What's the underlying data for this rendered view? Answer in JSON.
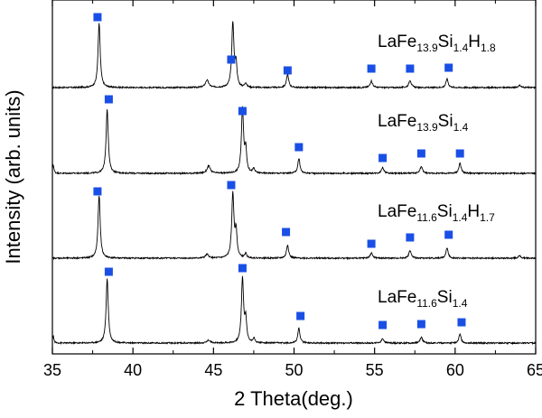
{
  "chart_data": {
    "type": "line",
    "xlabel": "2 Theta(deg.)",
    "ylabel": "Intensity (arb. units)",
    "xlim": [
      35,
      65
    ],
    "x_ticks": [
      35,
      40,
      45,
      50,
      55,
      60,
      65
    ],
    "grid": false,
    "marker_color": "#1a4fe6",
    "line_color": "#000000",
    "series": [
      {
        "name": "LaFe13.9Si1.4H1.8",
        "label_parts": [
          {
            "t": "LaFe",
            "sub": false
          },
          {
            "t": "13.9",
            "sub": true
          },
          {
            "t": "Si",
            "sub": false
          },
          {
            "t": "1.4",
            "sub": true
          },
          {
            "t": "H",
            "sub": false
          },
          {
            "t": "1.8",
            "sub": true
          }
        ],
        "peaks": [
          {
            "x": 37.9,
            "y": 0.87,
            "w": 0.08
          },
          {
            "x": 44.6,
            "y": 0.1,
            "w": 0.12
          },
          {
            "x": 46.2,
            "y": 0.87,
            "w": 0.08
          },
          {
            "x": 46.4,
            "y": 0.3,
            "w": 0.07
          },
          {
            "x": 47.0,
            "y": 0.06,
            "w": 0.07
          },
          {
            "x": 49.6,
            "y": 0.18,
            "w": 0.08
          },
          {
            "x": 54.8,
            "y": 0.09,
            "w": 0.09
          },
          {
            "x": 57.2,
            "y": 0.1,
            "w": 0.09
          },
          {
            "x": 59.5,
            "y": 0.12,
            "w": 0.08
          },
          {
            "x": 64.0,
            "y": 0.03,
            "w": 0.1
          }
        ],
        "markers_x": [
          37.8,
          46.1,
          49.6,
          54.8,
          57.2,
          59.6
        ]
      },
      {
        "name": "LaFe13.9Si1.4",
        "label_parts": [
          {
            "t": "LaFe",
            "sub": false
          },
          {
            "t": "13.9",
            "sub": true
          },
          {
            "t": "Si",
            "sub": false
          },
          {
            "t": "1.4",
            "sub": true
          }
        ],
        "peaks": [
          {
            "x": 35.05,
            "y": 0.12,
            "w": 0.05
          },
          {
            "x": 38.4,
            "y": 0.87,
            "w": 0.08
          },
          {
            "x": 44.7,
            "y": 0.1,
            "w": 0.12
          },
          {
            "x": 46.8,
            "y": 0.87,
            "w": 0.08
          },
          {
            "x": 47.0,
            "y": 0.3,
            "w": 0.07
          },
          {
            "x": 47.5,
            "y": 0.06,
            "w": 0.07
          },
          {
            "x": 50.3,
            "y": 0.2,
            "w": 0.08
          },
          {
            "x": 55.5,
            "y": 0.08,
            "w": 0.09
          },
          {
            "x": 57.9,
            "y": 0.09,
            "w": 0.09
          },
          {
            "x": 60.3,
            "y": 0.14,
            "w": 0.08
          }
        ],
        "markers_x": [
          38.5,
          46.8,
          50.3,
          55.5,
          57.9,
          60.3
        ]
      },
      {
        "name": "LaFe11.6Si1.4H1.7",
        "label_parts": [
          {
            "t": "LaFe",
            "sub": false
          },
          {
            "t": "11.6",
            "sub": true
          },
          {
            "t": "Si",
            "sub": false
          },
          {
            "t": "1.4",
            "sub": true
          },
          {
            "t": "H",
            "sub": false
          },
          {
            "t": "1.7",
            "sub": true
          }
        ],
        "peaks": [
          {
            "x": 37.9,
            "y": 0.85,
            "w": 0.08
          },
          {
            "x": 44.6,
            "y": 0.05,
            "w": 0.12
          },
          {
            "x": 46.2,
            "y": 0.87,
            "w": 0.08
          },
          {
            "x": 46.4,
            "y": 0.35,
            "w": 0.07
          },
          {
            "x": 47.0,
            "y": 0.06,
            "w": 0.07
          },
          {
            "x": 49.6,
            "y": 0.18,
            "w": 0.08
          },
          {
            "x": 54.8,
            "y": 0.07,
            "w": 0.09
          },
          {
            "x": 57.2,
            "y": 0.1,
            "w": 0.09
          },
          {
            "x": 59.5,
            "y": 0.14,
            "w": 0.08
          },
          {
            "x": 64.0,
            "y": 0.03,
            "w": 0.1
          }
        ],
        "markers_x": [
          37.8,
          46.1,
          49.5,
          54.8,
          57.2,
          59.6
        ]
      },
      {
        "name": "LaFe11.6Si1.4",
        "label_parts": [
          {
            "t": "LaFe",
            "sub": false
          },
          {
            "t": "11.6",
            "sub": true
          },
          {
            "t": "Si",
            "sub": false
          },
          {
            "t": "1.4",
            "sub": true
          }
        ],
        "peaks": [
          {
            "x": 35.05,
            "y": 0.1,
            "w": 0.05
          },
          {
            "x": 38.4,
            "y": 0.87,
            "w": 0.08
          },
          {
            "x": 44.7,
            "y": 0.04,
            "w": 0.12
          },
          {
            "x": 46.8,
            "y": 0.87,
            "w": 0.08
          },
          {
            "x": 47.0,
            "y": 0.3,
            "w": 0.07
          },
          {
            "x": 47.5,
            "y": 0.06,
            "w": 0.07
          },
          {
            "x": 50.3,
            "y": 0.2,
            "w": 0.08
          },
          {
            "x": 55.5,
            "y": 0.06,
            "w": 0.09
          },
          {
            "x": 57.9,
            "y": 0.08,
            "w": 0.09
          },
          {
            "x": 60.3,
            "y": 0.12,
            "w": 0.08
          }
        ],
        "markers_x": [
          38.5,
          46.8,
          50.4,
          55.5,
          57.9,
          60.4
        ]
      }
    ]
  }
}
